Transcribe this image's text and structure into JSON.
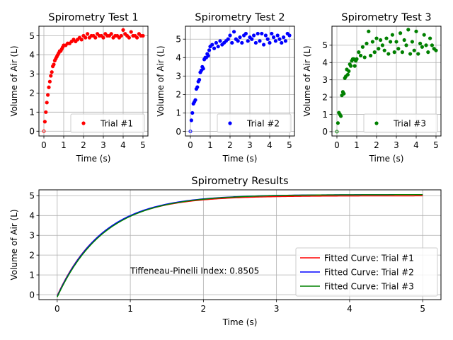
{
  "chart_data": [
    {
      "type": "scatter",
      "title": "Spirometry Test 1",
      "xlabel": "Time (s)",
      "ylabel": "Volume of Air (L)",
      "xlim": [
        -0.25,
        5.25
      ],
      "ylim": [
        -0.25,
        5.5
      ],
      "xticks": [
        0,
        1,
        2,
        3,
        4,
        5
      ],
      "yticks": [
        0,
        1,
        2,
        3,
        4,
        5
      ],
      "grid": true,
      "legend_position": "lower-right",
      "series": [
        {
          "name": "Trial #1",
          "color": "#ff0000",
          "x": [
            0,
            0.05,
            0.1,
            0.15,
            0.2,
            0.25,
            0.3,
            0.35,
            0.4,
            0.45,
            0.5,
            0.55,
            0.6,
            0.65,
            0.7,
            0.75,
            0.8,
            0.85,
            0.9,
            0.95,
            1.0,
            1.1,
            1.2,
            1.3,
            1.4,
            1.5,
            1.6,
            1.7,
            1.8,
            1.9,
            2.0,
            2.1,
            2.2,
            2.3,
            2.4,
            2.5,
            2.6,
            2.7,
            2.8,
            2.9,
            3.0,
            3.1,
            3.2,
            3.3,
            3.4,
            3.5,
            3.6,
            3.7,
            3.8,
            3.9,
            4.0,
            4.1,
            4.2,
            4.3,
            4.4,
            4.5,
            4.6,
            4.7,
            4.8,
            4.9,
            5.0
          ],
          "y": [
            0.0,
            0.5,
            1.0,
            1.5,
            1.9,
            2.3,
            2.6,
            2.9,
            3.1,
            3.4,
            3.5,
            3.7,
            3.8,
            3.9,
            4.0,
            4.1,
            4.2,
            4.2,
            4.3,
            4.4,
            4.5,
            4.5,
            4.6,
            4.6,
            4.7,
            4.8,
            4.7,
            4.8,
            4.9,
            4.8,
            5.0,
            4.9,
            5.1,
            4.9,
            5.0,
            5.0,
            4.9,
            5.1,
            5.0,
            5.0,
            4.9,
            5.1,
            5.0,
            5.0,
            5.1,
            4.9,
            5.0,
            5.0,
            4.9,
            5.0,
            5.3,
            5.1,
            5.0,
            4.9,
            5.2,
            5.0,
            5.0,
            4.9,
            5.1,
            5.0,
            5.0
          ]
        }
      ]
    },
    {
      "type": "scatter",
      "title": "Spirometry Test 2",
      "xlabel": "Time (s)",
      "ylabel": "Volume of Air (L)",
      "xlim": [
        -0.25,
        5.25
      ],
      "ylim": [
        -0.25,
        5.7
      ],
      "xticks": [
        0,
        1,
        2,
        3,
        4,
        5
      ],
      "yticks": [
        0,
        1,
        2,
        3,
        4,
        5
      ],
      "grid": true,
      "legend_position": "lower-right",
      "series": [
        {
          "name": "Trial #2",
          "color": "#0000ff",
          "x": [
            0,
            0.05,
            0.1,
            0.15,
            0.2,
            0.25,
            0.3,
            0.35,
            0.4,
            0.45,
            0.5,
            0.55,
            0.6,
            0.65,
            0.7,
            0.75,
            0.8,
            0.85,
            0.9,
            0.95,
            1.0,
            1.1,
            1.2,
            1.3,
            1.4,
            1.5,
            1.6,
            1.7,
            1.8,
            1.9,
            2.0,
            2.1,
            2.2,
            2.3,
            2.4,
            2.5,
            2.6,
            2.7,
            2.8,
            2.9,
            3.0,
            3.1,
            3.2,
            3.3,
            3.4,
            3.5,
            3.6,
            3.7,
            3.8,
            3.9,
            4.0,
            4.1,
            4.2,
            4.3,
            4.4,
            4.5,
            4.6,
            4.7,
            4.8,
            4.9,
            5.0
          ],
          "y": [
            0.0,
            0.6,
            1.0,
            1.5,
            1.6,
            1.7,
            2.3,
            2.4,
            2.7,
            2.8,
            3.2,
            3.3,
            3.5,
            3.4,
            3.9,
            4.0,
            4.0,
            4.2,
            4.1,
            4.4,
            4.6,
            4.7,
            4.5,
            4.8,
            4.6,
            4.9,
            4.7,
            4.8,
            4.9,
            5.0,
            5.2,
            4.8,
            5.4,
            5.0,
            4.9,
            5.1,
            4.8,
            5.2,
            5.3,
            4.9,
            5.1,
            5.0,
            5.2,
            4.8,
            5.3,
            4.9,
            5.3,
            4.7,
            5.2,
            5.0,
            4.8,
            5.3,
            5.1,
            4.9,
            5.2,
            5.0,
            4.8,
            5.1,
            4.9,
            5.3,
            5.2
          ]
        }
      ]
    },
    {
      "type": "scatter",
      "title": "Spirometry Test 3",
      "xlabel": "Time (s)",
      "ylabel": "Volume of Air (L)",
      "xlim": [
        -0.25,
        5.25
      ],
      "ylim": [
        -0.25,
        6.1
      ],
      "xticks": [
        0,
        1,
        2,
        3,
        4,
        5
      ],
      "yticks": [
        0,
        1,
        2,
        3,
        4,
        5
      ],
      "grid": true,
      "legend_position": "lower-right",
      "series": [
        {
          "name": "Trial #3",
          "color": "#008000",
          "x": [
            0,
            0.05,
            0.1,
            0.15,
            0.2,
            0.25,
            0.3,
            0.35,
            0.4,
            0.45,
            0.5,
            0.55,
            0.6,
            0.65,
            0.7,
            0.75,
            0.8,
            0.85,
            0.9,
            0.95,
            1.0,
            1.1,
            1.2,
            1.3,
            1.4,
            1.5,
            1.6,
            1.7,
            1.8,
            1.9,
            2.0,
            2.1,
            2.2,
            2.3,
            2.4,
            2.5,
            2.6,
            2.7,
            2.8,
            2.9,
            3.0,
            3.1,
            3.2,
            3.3,
            3.4,
            3.5,
            3.6,
            3.7,
            3.8,
            3.9,
            4.0,
            4.1,
            4.2,
            4.3,
            4.4,
            4.5,
            4.6,
            4.7,
            4.8,
            4.9,
            5.0
          ],
          "y": [
            0.0,
            0.5,
            1.1,
            1.0,
            0.9,
            2.1,
            2.3,
            2.2,
            3.1,
            3.2,
            3.6,
            3.3,
            3.5,
            3.9,
            3.8,
            4.1,
            4.2,
            4.2,
            3.8,
            4.1,
            4.2,
            4.6,
            4.4,
            4.9,
            4.3,
            5.1,
            5.8,
            4.4,
            5.2,
            4.6,
            5.4,
            4.8,
            5.3,
            5.0,
            4.7,
            5.4,
            4.5,
            5.2,
            5.6,
            4.6,
            5.2,
            4.8,
            5.7,
            4.6,
            5.3,
            5.0,
            5.9,
            4.5,
            5.2,
            4.7,
            5.8,
            4.5,
            5.1,
            4.9,
            5.6,
            5.0,
            4.6,
            5.4,
            5.0,
            4.8,
            4.7
          ]
        }
      ]
    },
    {
      "type": "line",
      "title": "Spirometry Results",
      "xlabel": "Time (s)",
      "ylabel": "Volume of Air (L)",
      "xlim": [
        -0.25,
        5.25
      ],
      "ylim": [
        -0.25,
        5.3
      ],
      "xticks": [
        0,
        1,
        2,
        3,
        4,
        5
      ],
      "yticks": [
        0,
        1,
        2,
        3,
        4,
        5
      ],
      "grid": true,
      "legend_position": "lower-right",
      "annotation": {
        "text": "Tiffeneau-Pinelli Index: 0.8505",
        "x": 1.0,
        "y": 1.05
      },
      "series": [
        {
          "name": "Fitted Curve: Trial #1",
          "color": "#ff0000",
          "model": "a*(1-exp(-b*x))+c",
          "a": 5.05,
          "b": 1.6,
          "c": -0.05
        },
        {
          "name": "Fitted Curve: Trial #2",
          "color": "#0000ff",
          "model": "a*(1-exp(-b*x))+c",
          "a": 5.14,
          "b": 1.58,
          "c": -0.08
        },
        {
          "name": "Fitted Curve: Trial #3",
          "color": "#008000",
          "model": "a*(1-exp(-b*x))+c",
          "a": 5.18,
          "b": 1.55,
          "c": -0.12
        }
      ]
    }
  ]
}
